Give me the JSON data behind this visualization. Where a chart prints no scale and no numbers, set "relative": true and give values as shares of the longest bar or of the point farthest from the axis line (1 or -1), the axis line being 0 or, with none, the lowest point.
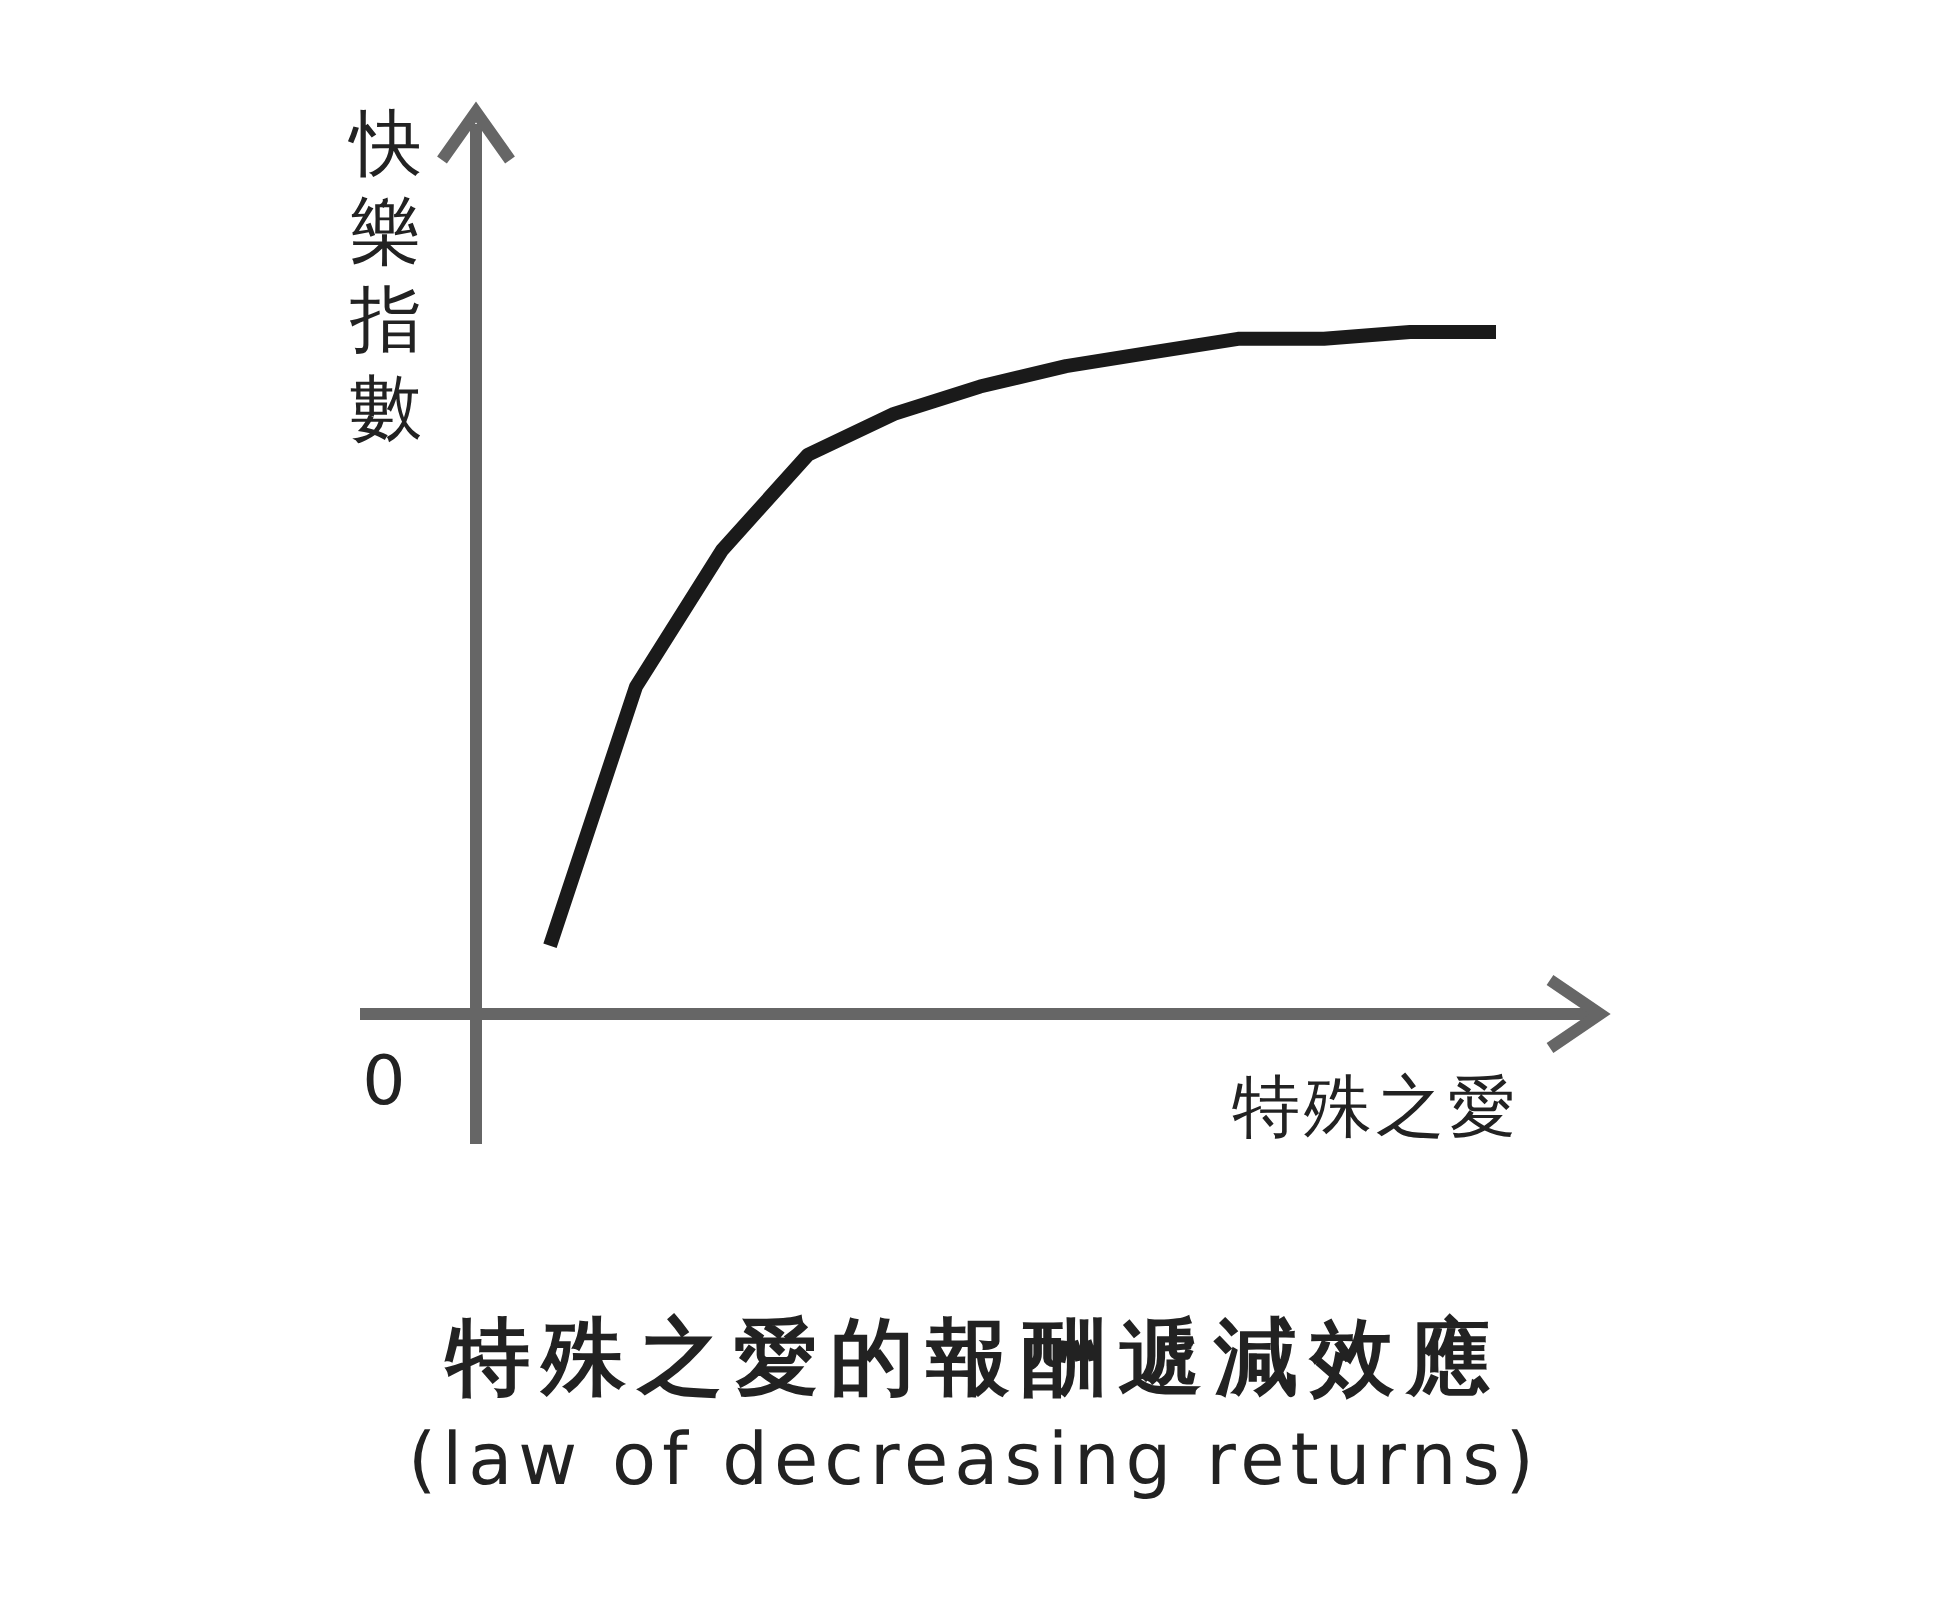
{
  "chart_data": {
    "type": "line",
    "title": "特殊之愛的報酬遞減效應",
    "subtitle": "(law of decreasing returns)",
    "xlabel": "特殊之愛",
    "ylabel": "快樂指數",
    "annotations": [
      "0"
    ],
    "relative": true,
    "categories": [
      null,
      null,
      null,
      null,
      null,
      null,
      null,
      null,
      null,
      null,
      null,
      null
    ],
    "values": [
      0.1,
      0.48,
      0.68,
      0.82,
      0.88,
      0.92,
      0.95,
      0.97,
      0.99,
      0.99,
      1.0,
      1.0
    ],
    "color": "#1a1a1a",
    "line_style": "solid",
    "marker": "none"
  }
}
